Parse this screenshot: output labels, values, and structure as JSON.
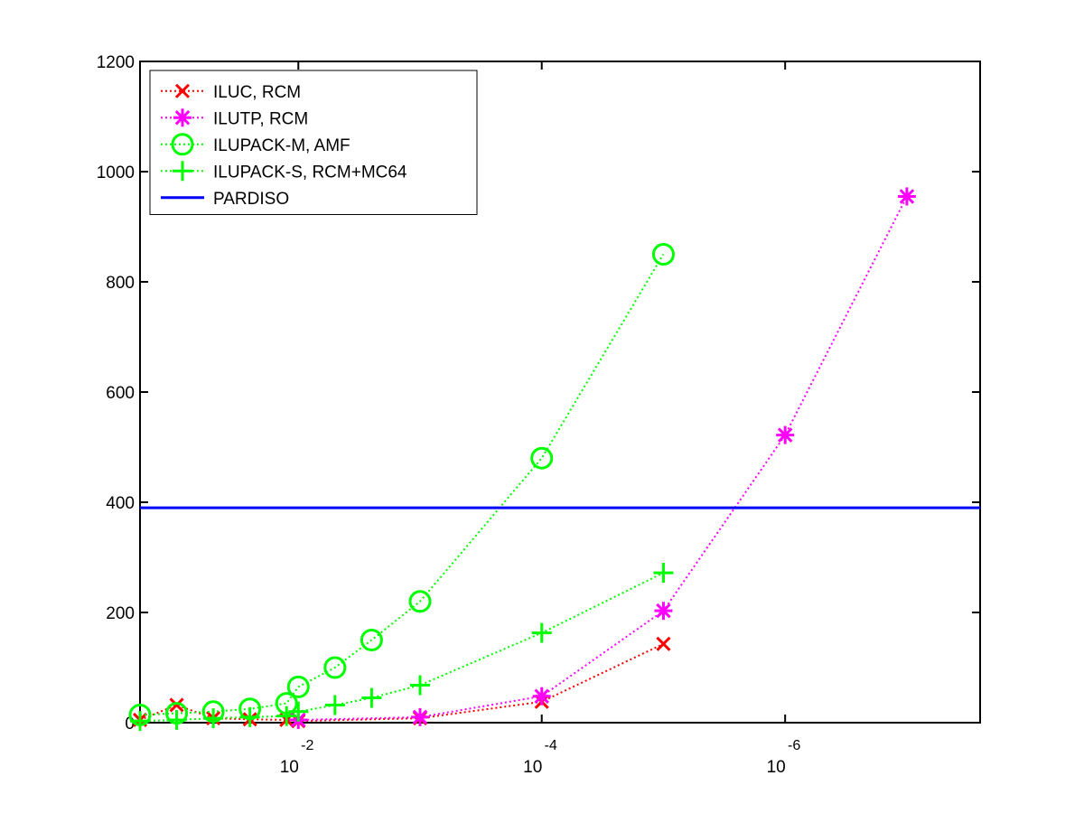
{
  "chart_data": {
    "type": "line",
    "x_scale": "log10",
    "x_axis_reversed": true,
    "xlim": [
      0.2,
      2.5e-08
    ],
    "ylim": [
      0,
      1200
    ],
    "y_ticks": [
      0,
      200,
      400,
      600,
      800,
      1000,
      1200
    ],
    "x_ticks": [
      {
        "value": 0.01,
        "base": "10",
        "exponent": "-2"
      },
      {
        "value": 0.0001,
        "base": "10",
        "exponent": "-4"
      },
      {
        "value": 1e-06,
        "base": "10",
        "exponent": "-6"
      }
    ],
    "grid": false,
    "legend_position": "top-left",
    "title": "",
    "xlabel": "",
    "ylabel": "",
    "series": [
      {
        "name": "ILUC, RCM",
        "color": "#ff0000",
        "marker": "x",
        "line_style": "dotted",
        "x": [
          0.2,
          0.1,
          0.05,
          0.025,
          0.0125,
          0.01,
          0.001,
          0.0001,
          1e-05
        ],
        "y": [
          5,
          32,
          8,
          6,
          5,
          3,
          8,
          38,
          143
        ]
      },
      {
        "name": "ILUTP, RCM",
        "color": "#ff00ff",
        "marker": "star",
        "line_style": "dotted",
        "x": [
          0.01,
          0.001,
          0.0001,
          1e-05,
          1e-06,
          1e-07
        ],
        "y": [
          5,
          10,
          48,
          203,
          522,
          955
        ]
      },
      {
        "name": "ILUPACK-M, AMF",
        "color": "#00ff00",
        "marker": "circle",
        "line_style": "dotted",
        "x": [
          0.2,
          0.1,
          0.05,
          0.025,
          0.0125,
          0.01,
          0.005,
          0.0025,
          0.001,
          0.0001,
          1e-05
        ],
        "y": [
          14,
          17,
          20,
          25,
          35,
          65,
          100,
          150,
          220,
          480,
          850
        ]
      },
      {
        "name": "ILUPACK-S, RCM+MC64",
        "color": "#00ff00",
        "marker": "plus",
        "line_style": "dotted",
        "x": [
          0.2,
          0.1,
          0.05,
          0.025,
          0.0125,
          0.01,
          0.005,
          0.0025,
          0.001,
          0.0001,
          1e-05
        ],
        "y": [
          3,
          5,
          8,
          10,
          12,
          20,
          32,
          45,
          68,
          163,
          272
        ]
      },
      {
        "name": "PARDISO",
        "color": "#0000ff",
        "marker": "none",
        "line_style": "solid",
        "x": [
          0.2,
          2.5e-08
        ],
        "y": [
          390,
          390
        ]
      }
    ]
  }
}
